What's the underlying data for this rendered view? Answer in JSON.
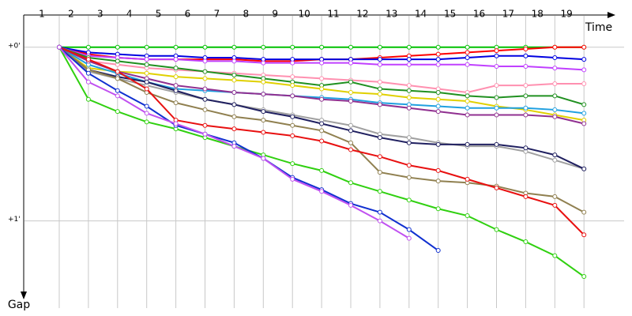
{
  "chart_data": {
    "type": "line",
    "x_label": "Time",
    "y_label": "Gap",
    "categories": [
      "1",
      "2",
      "3",
      "4",
      "5",
      "6",
      "7",
      "8",
      "9",
      "10",
      "11",
      "12",
      "13",
      "14",
      "15",
      "16",
      "17",
      "18",
      "19"
    ],
    "ylim": [
      -0.14,
      1.42
    ],
    "yticks": [
      {
        "value": 0,
        "label": "+0'"
      },
      {
        "value": 1,
        "label": "+1'"
      }
    ],
    "grid": true,
    "series": [
      {
        "color": "#00c000",
        "values": [
          0,
          0,
          0,
          0,
          0,
          0,
          0,
          0,
          0,
          0,
          0,
          0,
          0,
          0,
          0,
          0,
          0,
          0,
          0
        ]
      },
      {
        "color": "#ff0000",
        "values": [
          0,
          0.04,
          0.06,
          0.07,
          0.07,
          0.07,
          0.07,
          0.08,
          0.08,
          0.07,
          0.07,
          0.06,
          0.05,
          0.04,
          0.03,
          0.02,
          0.01,
          0,
          0
        ]
      },
      {
        "color": "#0000e0",
        "values": [
          0,
          0.03,
          0.04,
          0.05,
          0.05,
          0.06,
          0.06,
          0.07,
          0.07,
          0.07,
          0.07,
          0.07,
          0.07,
          0.07,
          0.06,
          0.05,
          0.05,
          0.06,
          0.07
        ]
      },
      {
        "color": "#c040ff",
        "values": [
          0,
          0.05,
          0.06,
          0.07,
          0.07,
          0.08,
          0.08,
          0.09,
          0.09,
          0.09,
          0.09,
          0.1,
          0.1,
          0.1,
          0.1,
          0.11,
          0.11,
          0.12,
          0.13
        ]
      },
      {
        "color": "#ff90b0",
        "values": [
          0,
          0.08,
          0.1,
          0.12,
          0.13,
          0.14,
          0.15,
          0.16,
          0.17,
          0.18,
          0.19,
          0.2,
          0.22,
          0.24,
          0.26,
          0.22,
          0.22,
          0.21,
          0.21
        ]
      },
      {
        "color": "#209020",
        "values": [
          0,
          0.06,
          0.08,
          0.1,
          0.12,
          0.14,
          0.16,
          0.18,
          0.2,
          0.22,
          0.2,
          0.24,
          0.25,
          0.26,
          0.28,
          0.29,
          0.28,
          0.28,
          0.33
        ]
      },
      {
        "color": "#e0d000",
        "values": [
          0,
          0.12,
          0.14,
          0.15,
          0.17,
          0.18,
          0.19,
          0.2,
          0.22,
          0.24,
          0.26,
          0.27,
          0.29,
          0.3,
          0.31,
          0.34,
          0.36,
          0.39,
          0.42
        ]
      },
      {
        "color": "#20a0e0",
        "values": [
          0,
          0.1,
          0.15,
          0.2,
          0.24,
          0.25,
          0.26,
          0.27,
          0.28,
          0.29,
          0.3,
          0.32,
          0.33,
          0.34,
          0.35,
          0.35,
          0.35,
          0.36,
          0.38
        ]
      },
      {
        "color": "#903090",
        "values": [
          0,
          0.08,
          0.14,
          0.18,
          0.22,
          0.24,
          0.26,
          0.27,
          0.28,
          0.3,
          0.31,
          0.33,
          0.35,
          0.37,
          0.39,
          0.39,
          0.39,
          0.4,
          0.44
        ]
      },
      {
        "color": "#a0a0a0",
        "values": [
          0,
          0.14,
          0.18,
          0.22,
          0.26,
          0.3,
          0.33,
          0.36,
          0.39,
          0.42,
          0.45,
          0.5,
          0.52,
          0.55,
          0.57,
          0.57,
          0.6,
          0.65,
          0.7
        ]
      },
      {
        "color": "#202060",
        "values": [
          0,
          0.13,
          0.17,
          0.2,
          0.25,
          0.3,
          0.33,
          0.37,
          0.4,
          0.44,
          0.48,
          0.52,
          0.55,
          0.56,
          0.56,
          0.56,
          0.58,
          0.62,
          0.7
        ]
      },
      {
        "color": "#908050",
        "values": [
          0,
          0.13,
          0.18,
          0.26,
          0.32,
          0.36,
          0.4,
          0.42,
          0.45,
          0.48,
          0.55,
          0.72,
          0.75,
          0.77,
          0.78,
          0.8,
          0.84,
          0.86,
          0.95
        ]
      },
      {
        "color": "#e81010",
        "values": [
          0,
          0.07,
          0.14,
          0.24,
          0.42,
          0.45,
          0.47,
          0.49,
          0.51,
          0.54,
          0.59,
          0.63,
          0.68,
          0.71,
          0.76,
          0.81,
          0.86,
          0.91,
          1.08
        ]
      },
      {
        "color": "#30d010",
        "values": [
          0,
          0.3,
          0.37,
          0.43,
          0.47,
          0.52,
          0.57,
          0.62,
          0.67,
          0.71,
          0.78,
          0.83,
          0.88,
          0.93,
          0.97,
          1.05,
          1.12,
          1.2,
          1.32
        ]
      },
      {
        "color": "#1030d0",
        "values": [
          0,
          0.15,
          0.25,
          0.34,
          0.45,
          0.5,
          0.55,
          0.64,
          0.75,
          0.82,
          0.9,
          0.95,
          1.05,
          1.17,
          null,
          null,
          null,
          null,
          null
        ]
      },
      {
        "color": "#c050f0",
        "values": [
          0,
          0.2,
          0.28,
          0.38,
          0.44,
          0.5,
          0.57,
          0.64,
          0.76,
          0.83,
          0.91,
          1.0,
          1.1,
          null,
          null,
          null,
          null,
          null,
          null
        ]
      }
    ]
  }
}
